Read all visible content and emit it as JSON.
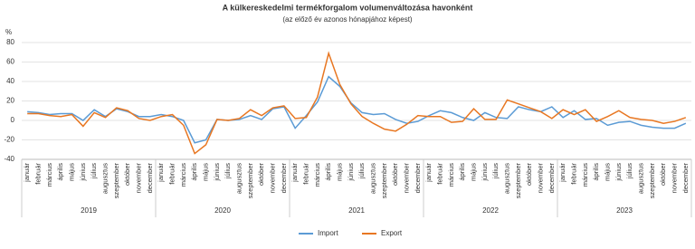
{
  "chart_data": {
    "type": "line",
    "title": "A külkereskedelmi termékforgalom volumenváltozása havonként",
    "subtitle": "(az előző év azonos hónapjához képest)",
    "y_label": "%",
    "categories": [
      "január",
      "február",
      "március",
      "április",
      "május",
      "június",
      "július",
      "augusztus",
      "szeptember",
      "október",
      "november",
      "december",
      "január",
      "február",
      "március",
      "április",
      "május",
      "június",
      "július",
      "augusztus",
      "szeptember",
      "október",
      "november",
      "december",
      "január",
      "február",
      "március",
      "április",
      "május",
      "június",
      "július",
      "augusztus",
      "szeptember",
      "október",
      "november",
      "december",
      "január",
      "február",
      "március",
      "április",
      "május",
      "június",
      "július",
      "augusztus",
      "szeptember",
      "október",
      "november",
      "december",
      "január",
      "február",
      "március",
      "április",
      "május",
      "június",
      "július",
      "augusztus",
      "szeptember",
      "október",
      "november",
      "december"
    ],
    "years": [
      "2019",
      "2020",
      "2021",
      "2022",
      "2023"
    ],
    "series": [
      {
        "name": "Import",
        "color": "#5b9bd5",
        "values": [
          9,
          8,
          6,
          7,
          7,
          0,
          11,
          4,
          12,
          9,
          4,
          4,
          6,
          4,
          0,
          -23,
          -20,
          1,
          0,
          1,
          5,
          1,
          12,
          14,
          -8,
          5,
          19,
          45,
          35,
          18,
          8,
          6,
          7,
          1,
          -3,
          -1,
          5,
          10,
          8,
          3,
          0,
          8,
          3,
          2,
          14,
          11,
          9,
          14,
          3,
          10,
          1,
          2,
          -5,
          -2,
          -1,
          -5,
          -7,
          -8,
          -8,
          -3
        ]
      },
      {
        "name": "Export",
        "color": "#e87722",
        "values": [
          7,
          7,
          5,
          4,
          6,
          -6,
          8,
          3,
          13,
          10,
          2,
          0,
          4,
          6,
          -5,
          -34,
          -25,
          1,
          0,
          2,
          11,
          5,
          13,
          15,
          2,
          3,
          24,
          69,
          37,
          17,
          4,
          -3,
          -9,
          -11,
          -4,
          5,
          4,
          4,
          -2,
          -1,
          12,
          1,
          1,
          21,
          17,
          13,
          9,
          2,
          11,
          6,
          11,
          -1,
          4,
          10,
          3,
          1,
          0,
          -3,
          -1,
          3
        ]
      }
    ],
    "ylim": [
      -40,
      80
    ],
    "yticks": [
      -40,
      -20,
      0,
      20,
      40,
      60,
      80
    ],
    "grid": true
  }
}
